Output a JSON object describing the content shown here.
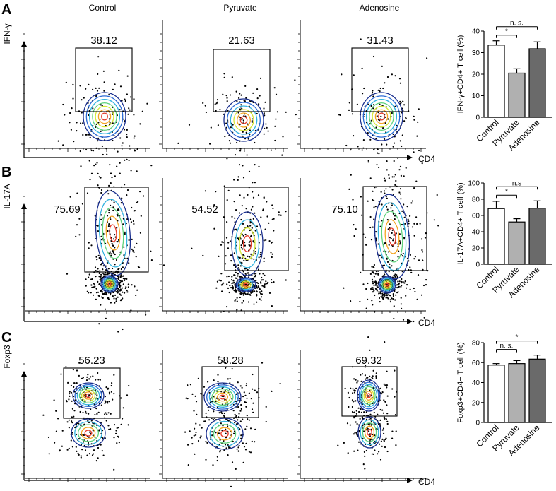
{
  "panel_letters": [
    "A",
    "B",
    "C"
  ],
  "column_titles": [
    "Control",
    "Pyruvate",
    "Adenosine"
  ],
  "x_axis_label": "CD4",
  "rows": [
    {
      "letter": "A",
      "marker": "IFN-γ",
      "gate_values": [
        "38.12",
        "21.63",
        "31.43"
      ]
    },
    {
      "letter": "B",
      "marker": "IL-17A",
      "gate_values": [
        "75.69",
        "54.52",
        "75.10"
      ]
    },
    {
      "letter": "C",
      "marker": "Foxp3",
      "gate_values": [
        "56.23",
        "58.28",
        "69.32"
      ]
    }
  ],
  "colors": {
    "contour": [
      "#1a2f8f",
      "#2c6bd6",
      "#33b3e0",
      "#5fd37c",
      "#d4e835",
      "#f5a623",
      "#e63b2a"
    ],
    "bar_fills": [
      "#ffffff",
      "#b0b0b0",
      "#6a6a6a"
    ],
    "axis": "#000000"
  },
  "chart_data": [
    {
      "type": "bar",
      "categories": [
        "Control",
        "Pyruvate",
        "Adenosine"
      ],
      "values": [
        33.5,
        20.5,
        31.8
      ],
      "errors": [
        2.0,
        2.0,
        3.2
      ],
      "ylabel": "IFN-γ+CD4+ T cell (%)",
      "ylim": [
        0,
        40
      ],
      "yticks": [
        "0",
        "10",
        "20",
        "30",
        "40"
      ],
      "significance": [
        {
          "from": 0,
          "to": 1,
          "label": "*"
        },
        {
          "from": 0,
          "to": 2,
          "label": "n. s."
        }
      ]
    },
    {
      "type": "bar",
      "categories": [
        "Control",
        "Pyruvate",
        "Adenosine"
      ],
      "values": [
        68.5,
        52.0,
        69.0
      ],
      "errors": [
        9.0,
        4.0,
        9.0
      ],
      "ylabel": "IL-17A+CD4+ T cell (%)",
      "ylim": [
        0,
        100
      ],
      "yticks": [
        "0",
        "20",
        "40",
        "60",
        "80",
        "100"
      ],
      "significance": [
        {
          "from": 0,
          "to": 1,
          "label": "*"
        },
        {
          "from": 0,
          "to": 2,
          "label": "n.s"
        }
      ]
    },
    {
      "type": "bar",
      "categories": [
        "Control",
        "Pyruvate",
        "Adenosine"
      ],
      "values": [
        57.5,
        59.0,
        63.5
      ],
      "errors": [
        1.5,
        3.0,
        4.0
      ],
      "ylabel": "Foxp3+CD4+ T cell (%)",
      "ylim": [
        0,
        80
      ],
      "yticks": [
        "0",
        "20",
        "40",
        "60",
        "80"
      ],
      "significance": [
        {
          "from": 0,
          "to": 1,
          "label": "n. s."
        },
        {
          "from": 0,
          "to": 2,
          "label": "*"
        }
      ]
    }
  ]
}
